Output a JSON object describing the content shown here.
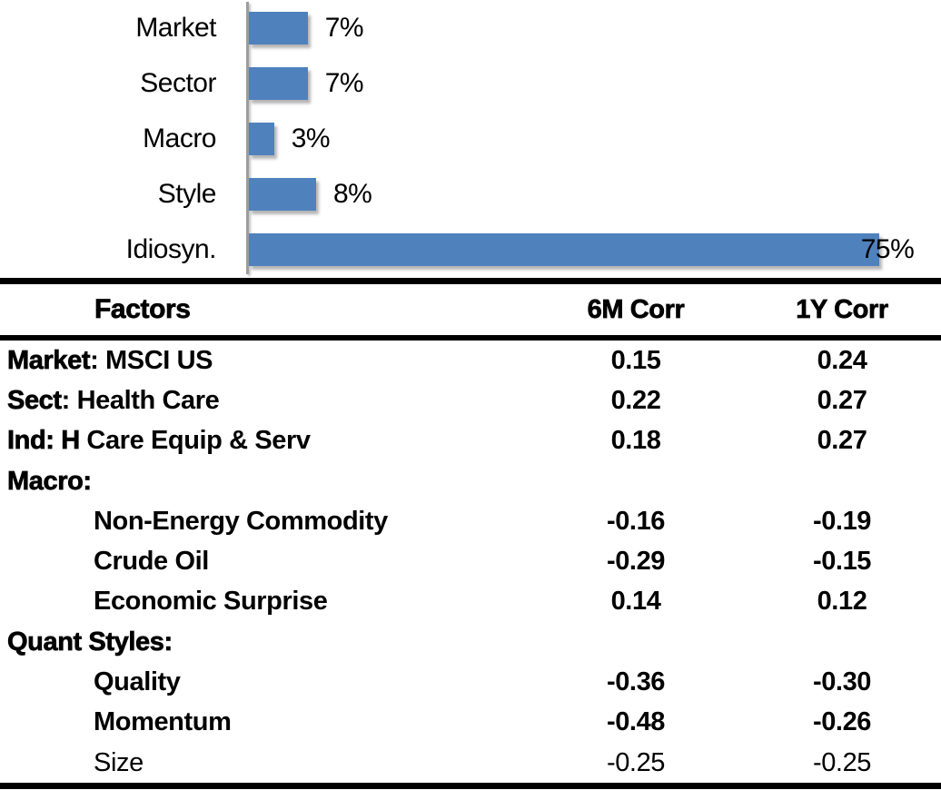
{
  "chart_data": [
    {
      "type": "bar",
      "orientation": "horizontal",
      "title": "",
      "categories": [
        "Market",
        "Sector",
        "Macro",
        "Style",
        "Idiosyn."
      ],
      "values": [
        7,
        7,
        3,
        8,
        75
      ],
      "value_labels": [
        "7%",
        "7%",
        "3%",
        "8%",
        "75%"
      ],
      "value_label_overlaps_bar_end": [
        false,
        false,
        false,
        false,
        true
      ],
      "xlim": [
        0,
        80
      ],
      "grid": false,
      "legend": false,
      "bar_color": "#4F81BD",
      "axis_color": "#9D9D9D"
    },
    {
      "type": "table",
      "columns": [
        "Factors",
        "6M Corr",
        "1Y Corr"
      ],
      "headers": {
        "factors": "Factors",
        "corr_6m": "6M Corr",
        "corr_1y": "1Y Corr"
      },
      "rows": [
        {
          "prefix": "Market",
          "rest": ": MSCI US",
          "indent": false,
          "light": false,
          "corr_6m": "0.15",
          "corr_1y": "0.24"
        },
        {
          "prefix": "Sect",
          "rest": ": Health Care",
          "indent": false,
          "light": false,
          "corr_6m": "0.22",
          "corr_1y": "0.27"
        },
        {
          "prefix": "Ind: H",
          "rest": " Care Equip & Serv",
          "indent": false,
          "light": false,
          "corr_6m": "0.18",
          "corr_1y": "0.27"
        },
        {
          "prefix": "Macro:",
          "rest": "",
          "indent": false,
          "light": false,
          "corr_6m": "",
          "corr_1y": ""
        },
        {
          "prefix": "",
          "rest": "Non-Energy Commodity",
          "indent": true,
          "light": false,
          "corr_6m": "-0.16",
          "corr_1y": "-0.19"
        },
        {
          "prefix": "",
          "rest": "Crude Oil",
          "indent": true,
          "light": false,
          "corr_6m": "-0.29",
          "corr_1y": "-0.15"
        },
        {
          "prefix": "",
          "rest": "Economic Surprise",
          "indent": true,
          "light": false,
          "corr_6m": "0.14",
          "corr_1y": "0.12"
        },
        {
          "prefix": "Quant Styles:",
          "rest": "",
          "indent": false,
          "light": false,
          "corr_6m": "",
          "corr_1y": ""
        },
        {
          "prefix": "",
          "rest": "Quality",
          "indent": true,
          "light": false,
          "corr_6m": "-0.36",
          "corr_1y": "-0.30"
        },
        {
          "prefix": "",
          "rest": "Momentum",
          "indent": true,
          "light": false,
          "corr_6m": "-0.48",
          "corr_1y": "-0.26"
        },
        {
          "prefix": "",
          "rest": "Size",
          "indent": true,
          "light": true,
          "corr_6m": "-0.25",
          "corr_1y": "-0.25"
        }
      ]
    }
  ],
  "colors": {
    "bar": "#4F81BD",
    "axis_line": "#9D9D9D",
    "text": "#000000",
    "table_border": "#000000"
  }
}
